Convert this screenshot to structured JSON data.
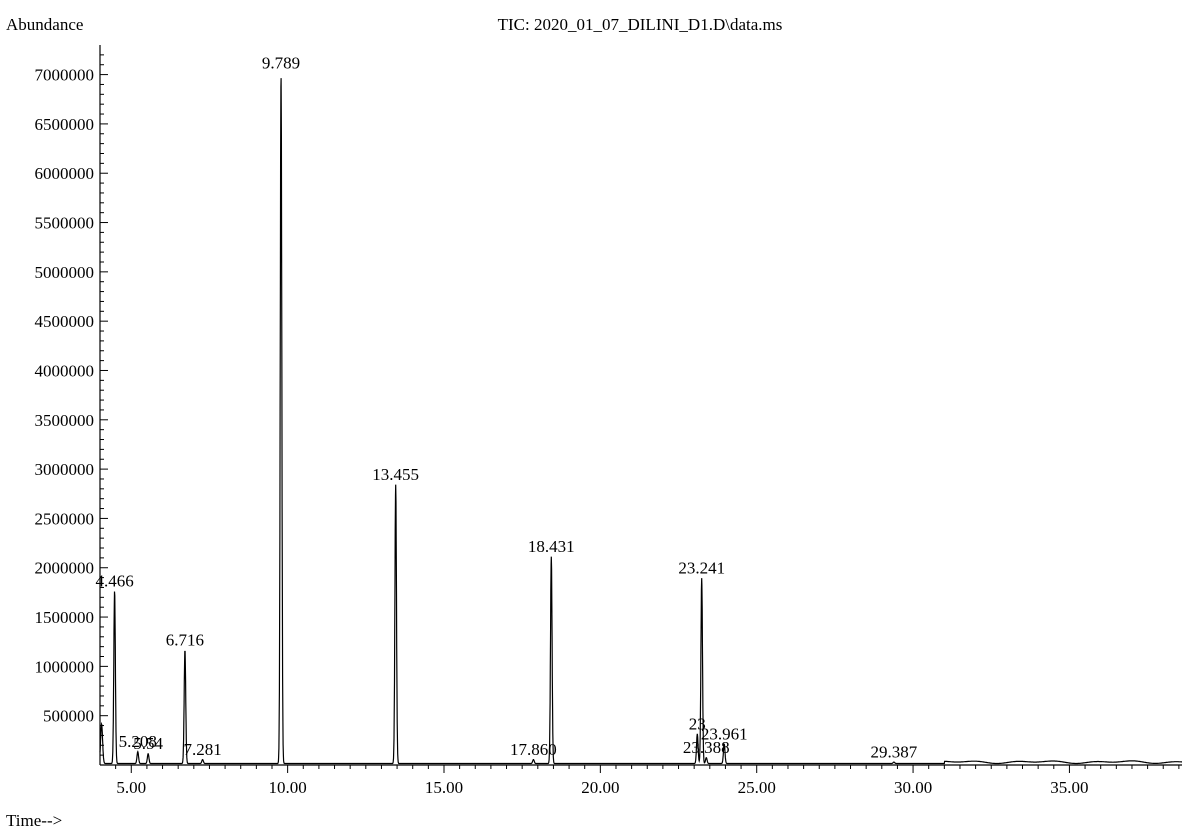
{
  "chart_data": {
    "type": "line",
    "title": "TIC: 2020_01_07_DILINI_D1.D\\data.ms",
    "ylabel": "Abundance",
    "xlabel": "Time-->",
    "xlim": [
      4.0,
      38.6
    ],
    "ylim": [
      0,
      7300000
    ],
    "x_ticks": [
      5,
      10,
      15,
      20,
      25,
      30,
      35
    ],
    "x_tick_labels": [
      "5.00",
      "10.00",
      "15.00",
      "20.00",
      "25.00",
      "30.00",
      "35.00"
    ],
    "y_ticks": [
      500000,
      1000000,
      1500000,
      2000000,
      2500000,
      3000000,
      3500000,
      4000000,
      4500000,
      5000000,
      5500000,
      6000000,
      6500000,
      7000000
    ],
    "y_tick_labels": [
      "500000",
      "1000000",
      "1500000",
      "2000000",
      "2500000",
      "3000000",
      "3500000",
      "4000000",
      "4500000",
      "5000000",
      "5500000",
      "6000000",
      "6500000",
      "7000000"
    ],
    "peaks": [
      {
        "rt": 4.466,
        "label": "4.466",
        "abundance": 1750000
      },
      {
        "rt": 5.208,
        "label": "5.208",
        "abundance": 120000
      },
      {
        "rt": 5.54,
        "label": "5.54",
        "abundance": 100000
      },
      {
        "rt": 6.716,
        "label": "6.716",
        "abundance": 1150000
      },
      {
        "rt": 7.281,
        "label": "7.281",
        "abundance": 40000
      },
      {
        "rt": 9.789,
        "label": "9.789",
        "abundance": 7000000
      },
      {
        "rt": 13.455,
        "label": "13.455",
        "abundance": 2830000
      },
      {
        "rt": 17.86,
        "label": "17.860",
        "abundance": 40000
      },
      {
        "rt": 18.431,
        "label": "18.431",
        "abundance": 2100000
      },
      {
        "rt": 23.1,
        "label": "23",
        "abundance": 300000
      },
      {
        "rt": 23.241,
        "label": "23.241",
        "abundance": 1880000
      },
      {
        "rt": 23.388,
        "label": "23.388",
        "abundance": 60000
      },
      {
        "rt": 23.961,
        "label": "23.961",
        "abundance": 200000
      },
      {
        "rt": 29.387,
        "label": "29.387",
        "abundance": 15000
      }
    ]
  }
}
